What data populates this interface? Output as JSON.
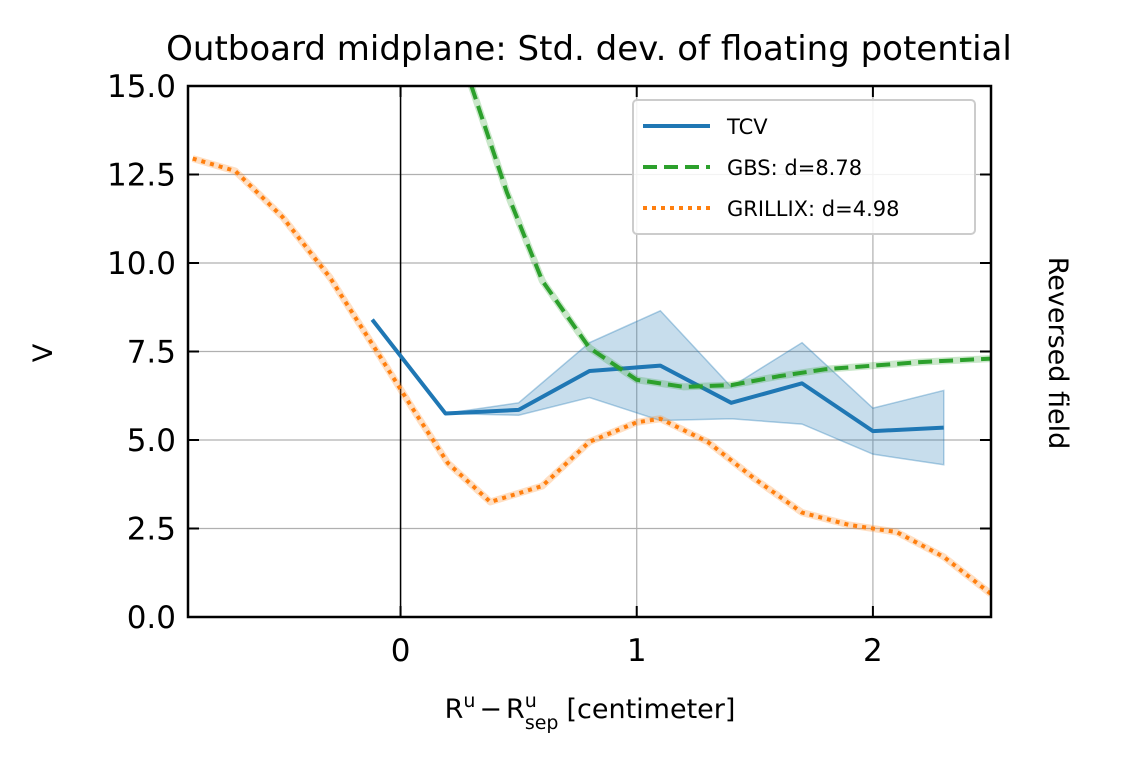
{
  "chart_data": {
    "type": "line",
    "title": "Outboard midplane: Std. dev. of floating potential",
    "ylabel": "V",
    "xlabel": {
      "base": "R",
      "sup": "u",
      "minus": "−",
      "base2": "R",
      "sup2": "u",
      "sub2": "sep",
      "unit": "[centimeter]"
    },
    "side_label": "Reversed field",
    "xlim": [
      -0.9,
      2.5
    ],
    "ylim": [
      0,
      15
    ],
    "xticks": [
      0,
      1,
      2
    ],
    "xtick_labels": [
      "0",
      "1",
      "2"
    ],
    "yticks": [
      0,
      2.5,
      5,
      7.5,
      10,
      12.5,
      15
    ],
    "ytick_labels": [
      "0.0",
      "2.5",
      "5.0",
      "7.5",
      "10.0",
      "12.5",
      "15.0"
    ],
    "grid": true,
    "vline_x": 0,
    "legend_position": "upper-right",
    "series": [
      {
        "name": "TCV",
        "style": "solid",
        "color": "#1f77b4",
        "x": [
          -0.12,
          0.19,
          0.5,
          0.8,
          1.1,
          1.4,
          1.7,
          2.0,
          2.3
        ],
        "y": [
          8.4,
          5.75,
          5.85,
          6.95,
          7.1,
          6.05,
          6.6,
          5.25,
          5.35
        ],
        "band_lower": [
          8.4,
          5.75,
          5.7,
          6.2,
          5.55,
          5.6,
          5.45,
          4.6,
          4.3
        ],
        "band_upper": [
          8.4,
          5.75,
          6.05,
          7.75,
          8.65,
          6.5,
          7.75,
          5.9,
          6.4
        ]
      },
      {
        "name": "GBS: d=8.78",
        "style": "dashed",
        "color": "#2ca02c",
        "x": [
          0.3,
          0.45,
          0.6,
          0.8,
          1.0,
          1.2,
          1.4,
          1.6,
          1.8,
          2.0,
          2.2,
          2.5
        ],
        "y": [
          15.0,
          12.0,
          9.5,
          7.6,
          6.7,
          6.5,
          6.55,
          6.8,
          7.0,
          7.1,
          7.2,
          7.3
        ]
      },
      {
        "name": "GRILLIX: d=4.98",
        "style": "dotted",
        "color": "#ff7f0e",
        "x": [
          -0.88,
          -0.7,
          -0.5,
          -0.3,
          -0.1,
          0.05,
          0.2,
          0.38,
          0.6,
          0.8,
          1.0,
          1.1,
          1.3,
          1.5,
          1.7,
          1.9,
          2.1,
          2.3,
          2.5
        ],
        "y": [
          12.95,
          12.6,
          11.3,
          9.6,
          7.5,
          5.9,
          4.35,
          3.25,
          3.7,
          4.95,
          5.5,
          5.6,
          4.95,
          3.9,
          2.95,
          2.6,
          2.4,
          1.7,
          0.65
        ]
      }
    ]
  }
}
